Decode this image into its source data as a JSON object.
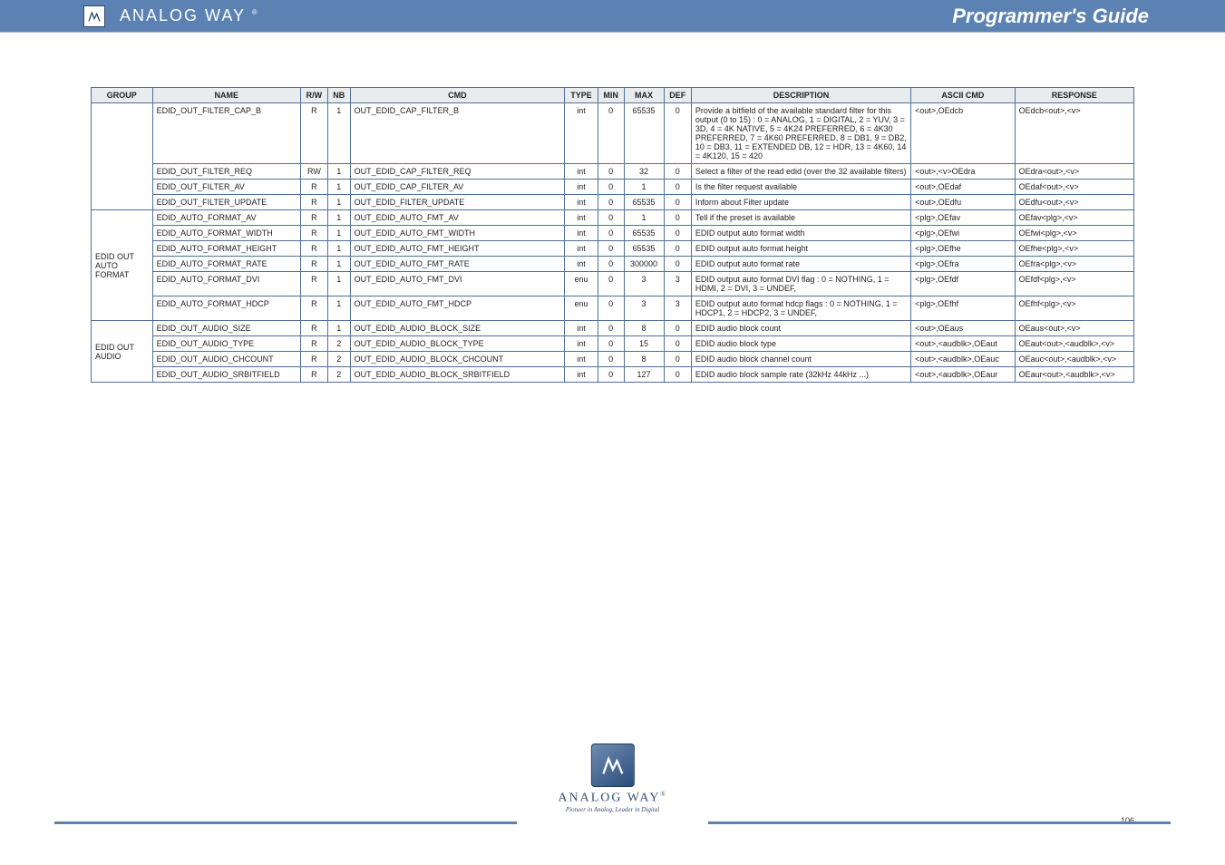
{
  "header": {
    "brand": "ANALOG WAY",
    "brand_reg": "®",
    "title": "Programmer's Guide"
  },
  "colors": {
    "bar": "#5b82b2",
    "grid_border": "#4f6f98",
    "header_bg": "#e9ecef"
  },
  "table": {
    "columns": [
      "GROUP",
      "NAME",
      "R/W",
      "NB",
      "CMD",
      "TYPE",
      "MIN",
      "MAX",
      "DEF",
      "DESCRIPTION",
      "ASCII CMD",
      "RESPONSE"
    ],
    "rows": [
      {
        "group": "",
        "group_span": 4,
        "name": "EDID_OUT_FILTER_CAP_B",
        "rw": "R",
        "nb": "1",
        "cmd": "OUT_EDID_CAP_FILTER_B",
        "type": "int",
        "min": "0",
        "max": "65535",
        "def": "0",
        "desc": "Provide a bitfield of the available standard filter for this output (0 to 15) : 0 = ANALOG, 1 = DIGITAL, 2 = YUV, 3 = 3D, 4 = 4K NATIVE, 5 = 4K24 PREFERRED, 6 = 4K30 PREFERRED, 7 = 4K60 PREFERRED, 8 = DB1, 9 = DB2, 10 = DB3, 11 = EXTENDED DB, 12 = HDR, 13 = 4K60, 14 = 4K120, 15 = 420",
        "asc": "<out>,OEdcb",
        "resp": "OEdcb<out>,<v>"
      },
      {
        "name": "EDID_OUT_FILTER_REQ",
        "rw": "RW",
        "nb": "1",
        "cmd": "OUT_EDID_CAP_FILTER_REQ",
        "type": "int",
        "min": "0",
        "max": "32",
        "def": "0",
        "desc": "Select a filter of the read edid (over the 32 available filters)",
        "asc": "<out>,<v>OEdra",
        "resp": "OEdra<out>,<v>"
      },
      {
        "name": "EDID_OUT_FILTER_AV",
        "rw": "R",
        "nb": "1",
        "cmd": "OUT_EDID_CAP_FILTER_AV",
        "type": "int",
        "min": "0",
        "max": "1",
        "def": "0",
        "desc": "Is the filter request available",
        "asc": "<out>,OEdaf",
        "resp": "OEdaf<out>,<v>"
      },
      {
        "name": "EDID_OUT_FILTER_UPDATE",
        "rw": "R",
        "nb": "1",
        "cmd": "OUT_EDID_FILTER_UPDATE",
        "type": "int",
        "min": "0",
        "max": "65535",
        "def": "0",
        "desc": "Inform about Filter update",
        "asc": "<out>,OEdfu",
        "resp": "OEdfu<out>,<v>"
      },
      {
        "group": "EDID OUT AUTO FORMAT",
        "group_span": 6,
        "name": "EDID_AUTO_FORMAT_AV",
        "rw": "R",
        "nb": "1",
        "cmd": "OUT_EDID_AUTO_FMT_AV",
        "type": "int",
        "min": "0",
        "max": "1",
        "def": "0",
        "desc": "Tell if the preset is available",
        "asc": "<plg>,OEfav",
        "resp": "OEfav<plg>,<v>"
      },
      {
        "name": "EDID_AUTO_FORMAT_WIDTH",
        "rw": "R",
        "nb": "1",
        "cmd": "OUT_EDID_AUTO_FMT_WIDTH",
        "type": "int",
        "min": "0",
        "max": "65535",
        "def": "0",
        "desc": "EDID output auto format width",
        "asc": "<plg>,OEfwi",
        "resp": "OEfwi<plg>,<v>"
      },
      {
        "name": "EDID_AUTO_FORMAT_HEIGHT",
        "rw": "R",
        "nb": "1",
        "cmd": "OUT_EDID_AUTO_FMT_HEIGHT",
        "type": "int",
        "min": "0",
        "max": "65535",
        "def": "0",
        "desc": "EDID output auto format height",
        "asc": "<plg>,OEfhe",
        "resp": "OEfhe<plg>,<v>"
      },
      {
        "name": "EDID_AUTO_FORMAT_RATE",
        "rw": "R",
        "nb": "1",
        "cmd": "OUT_EDID_AUTO_FMT_RATE",
        "type": "int",
        "min": "0",
        "max": "300000",
        "def": "0",
        "desc": "EDID output auto format rate",
        "asc": "<plg>,OEfra",
        "resp": "OEfra<plg>,<v>"
      },
      {
        "name": "EDID_AUTO_FORMAT_DVI",
        "rw": "R",
        "nb": "1",
        "cmd": "OUT_EDID_AUTO_FMT_DVI",
        "type": "enu",
        "min": "0",
        "max": "3",
        "def": "3",
        "desc": "EDID output auto format DVI flag : 0 = NOTHING, 1 = HDMI, 2 = DVI, 3 = UNDEF,",
        "asc": "<plg>,OEfdf",
        "resp": "OEfdf<plg>,<v>"
      },
      {
        "name": "EDID_AUTO_FORMAT_HDCP",
        "rw": "R",
        "nb": "1",
        "cmd": "OUT_EDID_AUTO_FMT_HDCP",
        "type": "enu",
        "min": "0",
        "max": "3",
        "def": "3",
        "desc": "EDID output auto format hdcp flags : 0 = NOTHING, 1 = HDCP1, 2 = HDCP2, 3 = UNDEF,",
        "asc": "<plg>,OEfhf",
        "resp": "OEfhf<plg>,<v>"
      },
      {
        "group": "EDID OUT AUDIO",
        "group_span": 4,
        "name": "EDID_OUT_AUDIO_SIZE",
        "rw": "R",
        "nb": "1",
        "cmd": "OUT_EDID_AUDIO_BLOCK_SIZE",
        "type": "int",
        "min": "0",
        "max": "8",
        "def": "0",
        "desc": "EDID audio block count",
        "asc": "<out>,OEaus",
        "resp": "OEaus<out>,<v>"
      },
      {
        "name": "EDID_OUT_AUDIO_TYPE",
        "rw": "R",
        "nb": "2",
        "cmd": "OUT_EDID_AUDIO_BLOCK_TYPE",
        "type": "int",
        "min": "0",
        "max": "15",
        "def": "0",
        "desc": "EDID audio block type",
        "asc": "<out>,<audblk>,OEaut",
        "resp": "OEaut<out>,<audblk>,<v>"
      },
      {
        "name": "EDID_OUT_AUDIO_CHCOUNT",
        "rw": "R",
        "nb": "2",
        "cmd": "OUT_EDID_AUDIO_BLOCK_CHCOUNT",
        "type": "int",
        "min": "0",
        "max": "8",
        "def": "0",
        "desc": "EDID audio block channel count",
        "asc": "<out>,<audblk>,OEauc",
        "resp": "OEauc<out>,<audblk>,<v>"
      },
      {
        "name": "EDID_OUT_AUDIO_SRBITFIELD",
        "rw": "R",
        "nb": "2",
        "cmd": "OUT_EDID_AUDIO_BLOCK_SRBITFIELD",
        "type": "int",
        "min": "0",
        "max": "127",
        "def": "0",
        "desc": "EDID audio block sample rate (32kHz 44kHz ...)",
        "asc": "<out>,<audblk>,OEaur",
        "resp": "OEaur<out>,<audblk>,<v>"
      }
    ]
  },
  "footer": {
    "brand": "ANALOG WAY",
    "tag": "Pioneer in Analog, Leader in Digital",
    "page": "106"
  }
}
